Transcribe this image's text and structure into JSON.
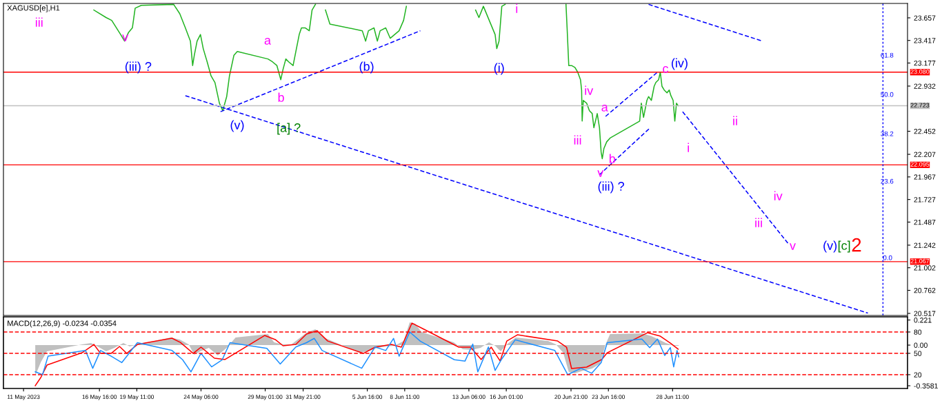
{
  "chart_data": [
    {
      "type": "line",
      "title": "XAGUSD[e],H1",
      "xlim": [
        "2023-05-09T12:00",
        "2023-07-16T00:00"
      ],
      "ylim": [
        20.495,
        23.81
      ],
      "yticks": [
        23.657,
        23.417,
        23.177,
        22.932,
        22.452,
        22.207,
        21.967,
        21.727,
        21.487,
        21.242,
        21.002,
        20.762,
        20.517
      ],
      "tick_labels": "y",
      "series": [
        {
          "color": "#22b422",
          "x": [
            "2023-05-16T06:00",
            "2023-05-17T04:00",
            "2023-05-17T14:00",
            "2023-05-18T06:00",
            "2023-05-18T13:00",
            "2023-05-18T20:00",
            "2023-05-19T03:00",
            "2023-05-19T08:00",
            "2023-05-19T19:00",
            "2023-05-22T05:00",
            "2023-05-22T16:00",
            "2023-05-23T02:00",
            "2023-05-23T11:00",
            "2023-05-23T15:00",
            "2023-05-23T18:00",
            "2023-05-23T23:00",
            "2023-05-24T05:00",
            "2023-05-24T10:00",
            "2023-05-24T17:00",
            "2023-05-25T00:00",
            "2023-05-25T07:00",
            "2023-05-25T15:00",
            "2023-05-25T21:00",
            "2023-05-26T04:00",
            "2023-05-26T09:00",
            "2023-05-26T17:00",
            "2023-05-26T23:00",
            "2023-05-29T06:00",
            "2023-05-29T14:00",
            "2023-05-29T22:00",
            "2023-05-30T05:00",
            "2023-05-30T09:00",
            "2023-05-30T14:00",
            "2023-05-30T19:00",
            "2023-05-31T03:00",
            "2023-05-31T08:00",
            "2023-05-31T14:00",
            "2023-05-31T18:00",
            "2023-06-01T01:00",
            "2023-06-01T08:00",
            "2023-06-01T13:00",
            "2023-06-01T19:00",
            "2023-06-02T02:00",
            "2023-06-02T13:00",
            "2023-06-02T21:00",
            "2023-06-05T07:00",
            "2023-06-05T13:00",
            "2023-06-05T18:00",
            "2023-06-06T04:00",
            "2023-06-06T10:00",
            "2023-06-06T15:00",
            "2023-06-07T01:00",
            "2023-06-07T09:00",
            "2023-06-07T17:00",
            "2023-06-08T01:00",
            "2023-06-08T09:00",
            "2023-06-08T14:00",
            "2023-06-12T03:00",
            "2023-06-13T18:00",
            "2023-06-14T00:00",
            "2023-06-14T08:00",
            "2023-06-15T05:00",
            "2023-06-15T08:00",
            "2023-06-15T12:00",
            "2023-06-15T17:00",
            "2023-06-15T23:00",
            "2023-06-16T23:00",
            "2023-06-20T12:00",
            "2023-06-20T14:00",
            "2023-06-20T17:00",
            "2023-06-20T22:00",
            "2023-06-21T04:00",
            "2023-06-21T09:00",
            "2023-06-21T14:00",
            "2023-06-21T16:00",
            "2023-06-21T17:00",
            "2023-06-21T19:00",
            "2023-06-22T01:00",
            "2023-06-22T06:00",
            "2023-06-22T11:00",
            "2023-06-22T14:00",
            "2023-06-22T20:00",
            "2023-06-23T00:00",
            "2023-06-23T03:00",
            "2023-06-23T05:00",
            "2023-06-23T08:00",
            "2023-06-23T13:00",
            "2023-06-23T19:00",
            "2023-06-26T00:00",
            "2023-06-26T03:00",
            "2023-06-26T07:00",
            "2023-06-26T13:00",
            "2023-06-26T16:00",
            "2023-06-26T21:00",
            "2023-06-27T02:00",
            "2023-06-27T05:00",
            "2023-06-27T10:00",
            "2023-06-27T13:00",
            "2023-06-27T16:00",
            "2023-06-27T20:00",
            "2023-06-28T01:00",
            "2023-06-28T05:00",
            "2023-06-28T08:00",
            "2023-06-28T12:00",
            "2023-06-28T15:00",
            "2023-06-28T18:00",
            "2023-06-28T21:00"
          ],
          "values": [
            23.74,
            23.66,
            23.63,
            23.48,
            23.41,
            23.5,
            23.55,
            23.76,
            23.79,
            23.8,
            23.7,
            23.55,
            23.41,
            23.15,
            23.26,
            23.41,
            23.48,
            23.33,
            23.19,
            23.04,
            22.97,
            22.75,
            22.67,
            22.82,
            23.04,
            23.26,
            23.3,
            23.22,
            23.19,
            23.15,
            23.0,
            23.11,
            23.22,
            23.19,
            23.15,
            23.3,
            23.48,
            23.55,
            23.55,
            23.52,
            23.74,
            23.8,
            null,
            23.74,
            23.59,
            23.52,
            23.41,
            23.52,
            23.55,
            23.41,
            23.52,
            23.55,
            23.44,
            23.48,
            23.52,
            23.63,
            23.78,
            null,
            23.74,
            23.66,
            23.78,
            23.48,
            23.33,
            23.41,
            23.78,
            23.8,
            null,
            23.8,
            23.55,
            23.15,
            23.15,
            23.13,
            23.08,
            23.0,
            22.89,
            22.56,
            22.78,
            22.75,
            22.67,
            22.64,
            22.49,
            22.64,
            22.49,
            22.23,
            22.16,
            22.27,
            22.34,
            22.38,
            22.56,
            22.75,
            22.6,
            22.78,
            22.82,
            22.78,
            22.93,
            22.97,
            23.0,
            23.08,
            22.93,
            22.89,
            22.86,
            22.89,
            22.83,
            22.78,
            22.56,
            22.75,
            22.723
          ]
        },
        {
          "type": "line",
          "line_style": "dashed",
          "color": "#0000ff",
          "x": [
            "2023-05-23T02:00",
            "2023-07-13T01:00"
          ],
          "values": [
            22.83,
            20.52
          ]
        },
        {
          "type": "line",
          "line_style": "dashed",
          "color": "#0000ff",
          "x": [
            "2023-05-25T17:00",
            "2023-06-09T15:00"
          ],
          "values": [
            22.66,
            23.52
          ]
        },
        {
          "type": "line",
          "line_style": "dashed",
          "color": "#0000ff",
          "x": [
            "2023-06-26T16:00",
            "2023-07-05T04:00"
          ],
          "values": [
            23.8,
            23.41
          ]
        },
        {
          "type": "line",
          "line_style": "dashed",
          "color": "#0000ff",
          "x": [
            "2023-06-23T11:00",
            "2023-06-27T08:00"
          ],
          "values": [
            22.61,
            23.08
          ]
        },
        {
          "type": "line",
          "line_style": "dashed",
          "color": "#0000ff",
          "x": [
            "2023-06-23T00:00",
            "2023-06-26T19:00"
          ],
          "values": [
            21.99,
            22.49
          ]
        },
        {
          "type": "line",
          "line_style": "dashed",
          "color": "#0000ff",
          "x": [
            "2023-06-29T05:00",
            "2023-07-07T02:00"
          ],
          "values": [
            22.66,
            21.26
          ]
        }
      ],
      "ref_lines": [
        {
          "axis": "y",
          "value": 23.08,
          "label": "23.080",
          "color": "#ff0000"
        },
        {
          "axis": "y",
          "value": 22.095,
          "label": "22.095",
          "color": "#ff0000"
        },
        {
          "axis": "y",
          "value": 21.067,
          "label": "21.067",
          "color": "#ff0000"
        },
        {
          "axis": "y",
          "value": 22.723,
          "label": "22.723",
          "color": "#c0c0c0"
        },
        {
          "axis": "x",
          "value": "2023-07-14T04:00",
          "color": "#0000ff",
          "line_style": "dotted"
        }
      ],
      "annotations": [
        "iii",
        "v",
        "(iii) ?",
        "a",
        "b",
        "(v)",
        "[a] ?",
        "(b)",
        "(i)",
        "i",
        "iv",
        "iii",
        "a",
        "b",
        "v",
        "(iii) ?",
        "c",
        "(iv)",
        "ii",
        "i",
        "iv",
        "iii",
        "v",
        "(v)",
        "[c]",
        "2",
        "61.8",
        "50.0",
        "38.2",
        "23.6",
        "0.0"
      ]
    },
    {
      "type": "line",
      "title": "MACD(12,26,9) -0.0234 -0.0354",
      "xlim": [
        "2023-05-09T12:00",
        "2023-07-16T00:00"
      ],
      "ylim": [
        -0.382,
        0.249
      ],
      "yticks": [
        0.221,
        {
          "value": 0,
          "label": "0.00"
        },
        -0.3581
      ],
      "y2lim": [
        0.6,
        101.3
      ],
      "y2ticks": [
        80,
        50,
        20
      ],
      "xticks": [
        {
          "value": "2023-05-11",
          "label": "11 May 2023"
        },
        {
          "value": "2023-05-16T16:00",
          "label": "16 May 16:00"
        },
        {
          "value": "2023-05-19T11:00",
          "label": "19 May 11:00"
        },
        {
          "value": "2023-05-24T06:00",
          "label": "24 May 06:00"
        },
        {
          "value": "2023-05-29T01:00",
          "label": "29 May 01:00"
        },
        {
          "value": "2023-05-31T21:00",
          "label": "31 May 21:00"
        },
        {
          "value": "2023-06-05T16:00",
          "label": "5 Jun 16:00"
        },
        {
          "value": "2023-06-08T11:00",
          "label": "8 Jun 11:00"
        },
        {
          "value": "2023-06-13T06:00",
          "label": "13 Jun 06:00"
        },
        {
          "value": "2023-06-16T01:00",
          "label": "16 Jun 01:00"
        },
        {
          "value": "2023-06-20T21:00",
          "label": "20 Jun 21:00"
        },
        {
          "value": "2023-06-23T16:00",
          "label": "23 Jun 16:00"
        },
        {
          "value": "2023-06-28T11:00",
          "label": "28 Jun 11:00"
        }
      ],
      "series": [
        {
          "type": "area",
          "color": "#c0c0c0",
          "x": [
            "2023-05-11T21:00",
            "2023-05-12T07:00",
            "2023-05-12T18:00",
            "2023-05-15T09:00",
            "2023-05-16T01:00",
            "2023-05-16T17:00",
            "2023-05-17T04:00",
            "2023-05-17T19:00",
            "2023-05-18T11:00",
            "2023-05-18T22:00",
            "2023-05-19T13:00",
            "2023-05-22T00:00",
            "2023-05-22T16:00",
            "2023-05-23T08:00",
            "2023-05-23T18:00",
            "2023-05-24T05:00",
            "2023-05-24T20:00",
            "2023-05-25T12:00",
            "2023-05-26T04:00",
            "2023-05-26T20:00",
            "2023-05-29T06:00",
            "2023-05-29T17:00",
            "2023-05-30T09:00",
            "2023-05-31T00:00",
            "2023-05-31T16:00",
            "2023-06-01T03:00",
            "2023-06-01T19:00",
            "2023-06-02T10:00",
            "2023-06-05T02:00",
            "2023-06-05T18:00",
            "2023-06-06T10:00",
            "2023-06-07T01:00",
            "2023-06-07T17:00",
            "2023-06-08T09:00",
            "2023-06-08T20:00",
            "2023-06-09T06:00",
            "2023-06-09T17:00",
            "2023-06-12T03:00",
            "2023-06-12T19:00",
            "2023-06-13T11:00",
            "2023-06-14T03:00",
            "2023-06-14T18:00",
            "2023-06-15T05:00",
            "2023-06-15T15:00",
            "2023-06-16T02:00",
            "2023-06-16T18:00",
            "2023-06-19T04:00",
            "2023-06-19T18:00",
            "2023-06-20T07:00",
            "2023-06-20T17:00",
            "2023-06-21T04:00",
            "2023-06-21T19:00",
            "2023-06-22T11:00",
            "2023-06-23T01:00",
            "2023-06-23T11:00",
            "2023-06-23T19:00",
            "2023-06-26T05:00",
            "2023-06-26T21:00",
            "2023-06-27T08:00",
            "2023-06-27T23:00",
            "2023-06-28T15:00",
            "2023-06-28T22:00"
          ],
          "values": [
            -0.27,
            -0.15,
            -0.055,
            0.006,
            0.018,
            -0.024,
            -0.055,
            -0.024,
            0.018,
            -0.012,
            0.006,
            0.067,
            0.049,
            0.006,
            -0.085,
            -0.055,
            -0.024,
            -0.091,
            -0.024,
            0.067,
            0.097,
            0.024,
            0.006,
            0.006,
            0.067,
            0.109,
            0.14,
            0.067,
            -0.067,
            -0.055,
            -0.024,
            -0.012,
            -0.006,
            0.036,
            0.2,
            0.188,
            0.115,
            0.024,
            -0.036,
            -0.042,
            -0.024,
            0.024,
            -0.006,
            -0.055,
            0.006,
            0.067,
            0.036,
            0.006,
            -0.067,
            -0.237,
            -0.249,
            -0.225,
            -0.206,
            -0.164,
            0.006,
            0.097,
            0.103,
            0.079,
            0.055,
            0.018,
            -0.006,
            -0.006
          ]
        },
        {
          "type": "line",
          "color": "#ff0000",
          "x": [
            "2023-05-11T21:00",
            "2023-05-12T07:00",
            "2023-05-12T18:00",
            "2023-05-15T09:00",
            "2023-05-16T01:00",
            "2023-05-16T06:00",
            "2023-05-16T18:00",
            "2023-05-17T13:00",
            "2023-05-18T04:00",
            "2023-05-18T17:00",
            "2023-05-19T12:00",
            "2023-05-22T02:00",
            "2023-05-22T17:00",
            "2023-05-23T16:00",
            "2023-05-24T06:00",
            "2023-05-25T06:00",
            "2023-05-26T01:00",
            "2023-05-29T00:00",
            "2023-05-29T19:00",
            "2023-05-30T09:00",
            "2023-05-31T08:00",
            "2023-06-01T03:00",
            "2023-06-01T22:00",
            "2023-06-02T17:00",
            "2023-06-05T09:00",
            "2023-06-06T06:00",
            "2023-06-07T11:00",
            "2023-06-08T05:00",
            "2023-06-09T00:00",
            "2023-06-09T19:00",
            "2023-06-12T12:00",
            "2023-06-13T09:00",
            "2023-06-14T04:00",
            "2023-06-14T22:00",
            "2023-06-15T14:00",
            "2023-06-16T02:00",
            "2023-06-16T21:00",
            "2023-06-19T21:00",
            "2023-06-20T13:00",
            "2023-06-20T22:00",
            "2023-06-22T01:00",
            "2023-06-23T04:00",
            "2023-06-23T14:00",
            "2023-06-26T14:00",
            "2023-06-27T13:00",
            "2023-06-28T07:00",
            "2023-06-28T21:00"
          ],
          "values": [
            -0.358,
            -0.285,
            -0.176,
            -0.067,
            -0.012,
            0.006,
            -0.073,
            -0.073,
            -0.012,
            -0.073,
            0.006,
            0.061,
            0.024,
            -0.073,
            -0.018,
            -0.115,
            -0.127,
            0.085,
            0.049,
            -0.006,
            0.006,
            0.097,
            0.127,
            0.036,
            -0.073,
            -0.018,
            0.006,
            -0.018,
            0.194,
            0.146,
            -0.018,
            -0.018,
            -0.127,
            -0.018,
            -0.14,
            0.036,
            0.091,
            0.036,
            -0.018,
            -0.206,
            -0.194,
            -0.127,
            -0.067,
            0.109,
            0.079,
            0.018,
            -0.036
          ]
        },
        {
          "type": "line",
          "axis": "y2",
          "color": "#1e90ff",
          "x": [
            "2023-05-11T21:00",
            "2023-05-12T10:00",
            "2023-05-12T20:00",
            "2023-05-15T15:00",
            "2023-05-16T04:00",
            "2023-05-16T18:00",
            "2023-05-17T13:00",
            "2023-05-18T08:00",
            "2023-05-18T23:00",
            "2023-05-19T12:00",
            "2023-05-22T02:00",
            "2023-05-22T21:00",
            "2023-05-23T12:00",
            "2023-05-24T06:00",
            "2023-05-25T01:00",
            "2023-05-25T20:00",
            "2023-05-26T10:00",
            "2023-05-29T04:00",
            "2023-05-30T04:00",
            "2023-05-31T08:00",
            "2023-06-01T03:00",
            "2023-06-01T17:00",
            "2023-06-02T07:00",
            "2023-06-05T06:00",
            "2023-06-06T06:00",
            "2023-06-07T01:00",
            "2023-06-07T15:00",
            "2023-06-08T01:00",
            "2023-06-08T20:00",
            "2023-06-09T15:00",
            "2023-06-12T04:00",
            "2023-06-12T23:00",
            "2023-06-13T13:00",
            "2023-06-13T22:00",
            "2023-06-14T17:00",
            "2023-06-15T05:00",
            "2023-06-15T16:00",
            "2023-06-16T17:00",
            "2023-06-19T16:00",
            "2023-06-20T15:00",
            "2023-06-21T15:00",
            "2023-06-22T10:00",
            "2023-06-23T03:00",
            "2023-06-23T14:00",
            "2023-06-26T04:00",
            "2023-06-26T18:00",
            "2023-06-27T08:00",
            "2023-06-27T21:00",
            "2023-06-28T07:00",
            "2023-06-28T13:00",
            "2023-06-28T19:00",
            "2023-06-28T22:00"
          ],
          "values": [
            24,
            20,
            46,
            54,
            29,
            54,
            46,
            37,
            52,
            65,
            54,
            41,
            24,
            50,
            31,
            41,
            65,
            57,
            35,
            59,
            65,
            71,
            54,
            29,
            59,
            54,
            71,
            46,
            80,
            67,
            41,
            39,
            63,
            24,
            59,
            26,
            41,
            69,
            54,
            20,
            29,
            22,
            37,
            65,
            70,
            58,
            70,
            47,
            58,
            31,
            54,
            45
          ]
        }
      ],
      "ref_lines": [
        {
          "axis": "y2",
          "value": 80,
          "color": "#ff0000",
          "line_style": "dashed"
        },
        {
          "axis": "y2",
          "value": 50,
          "color": "#ff0000",
          "line_style": "dashed"
        },
        {
          "axis": "y2",
          "value": 20,
          "color": "#ff0000",
          "line_style": "dashed"
        }
      ]
    }
  ]
}
